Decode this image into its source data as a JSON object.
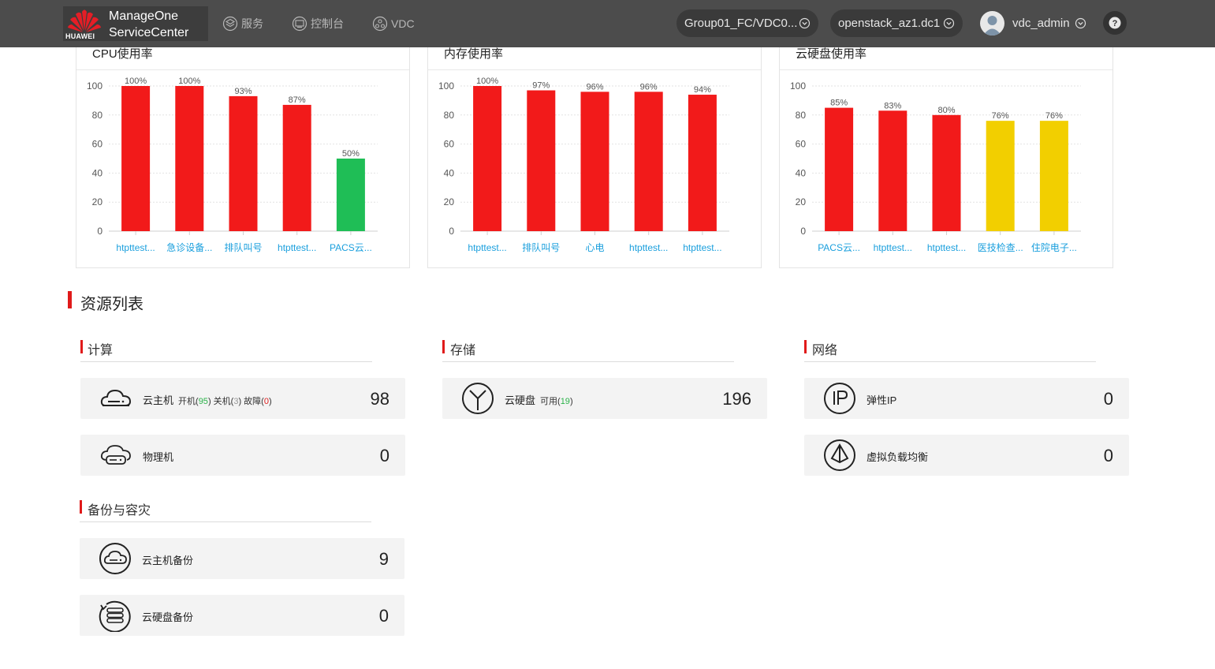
{
  "topbar": {
    "brand": "HUAWEI",
    "product_line1": "ManageOne",
    "product_line2": "ServiceCenter",
    "nav": [
      {
        "label": "服务",
        "icon": "layers-icon"
      },
      {
        "label": "控制台",
        "icon": "console-icon"
      },
      {
        "label": "VDC",
        "icon": "vdc-icon"
      }
    ],
    "vdc_selector": "Group01_FC/VDC0...",
    "region_selector": "openstack_az1.dc1",
    "user_name": "vdc_admin",
    "help_symbol": "?"
  },
  "charts": {
    "cpu": {
      "title": "CPU使用率"
    },
    "mem": {
      "title": "内存使用率"
    },
    "disk": {
      "title": "云硬盘使用率"
    }
  },
  "chart_data": [
    {
      "type": "bar",
      "title": "CPU使用率",
      "categories": [
        "htpttest...",
        "急诊设备...",
        "排队叫号",
        "htpttest...",
        "PACS云..."
      ],
      "values": [
        100,
        100,
        93,
        87,
        50
      ],
      "value_labels": [
        "100%",
        "100%",
        "93%",
        "87%",
        "50%"
      ],
      "colors": [
        "#f21a1a",
        "#f21a1a",
        "#f21a1a",
        "#f21a1a",
        "#1fbe56"
      ],
      "ylim": [
        0,
        100
      ],
      "yticks": [
        0,
        20,
        40,
        60,
        80,
        100
      ],
      "grid": true
    },
    {
      "type": "bar",
      "title": "内存使用率",
      "categories": [
        "htpttest...",
        "排队叫号",
        "心电",
        "htpttest...",
        "htpttest..."
      ],
      "values": [
        100,
        97,
        96,
        96,
        94
      ],
      "value_labels": [
        "100%",
        "97%",
        "96%",
        "96%",
        "94%"
      ],
      "colors": [
        "#f21a1a",
        "#f21a1a",
        "#f21a1a",
        "#f21a1a",
        "#f21a1a"
      ],
      "ylim": [
        0,
        100
      ],
      "yticks": [
        0,
        20,
        40,
        60,
        80,
        100
      ],
      "grid": true
    },
    {
      "type": "bar",
      "title": "云硬盘使用率",
      "categories": [
        "PACS云...",
        "htpttest...",
        "htpttest...",
        "医技检查...",
        "住院电子..."
      ],
      "values": [
        85,
        83,
        80,
        76,
        76
      ],
      "value_labels": [
        "85%",
        "83%",
        "80%",
        "76%",
        "76%"
      ],
      "colors": [
        "#f21a1a",
        "#f21a1a",
        "#f21a1a",
        "#f2cf00",
        "#f2cf00"
      ],
      "ylim": [
        0,
        100
      ],
      "yticks": [
        0,
        20,
        40,
        60,
        80,
        100
      ],
      "grid": true
    }
  ],
  "resources": {
    "title": "资源列表",
    "compute": {
      "title": "计算",
      "vm": {
        "label": "云主机",
        "on_label": "开机(",
        "on": "95",
        "off_label": ") 关机(",
        "off": "3",
        "fault_label": ") 故障(",
        "fault": "0",
        "close": ")",
        "count": "98"
      },
      "physical": {
        "label": "物理机",
        "count": "0"
      }
    },
    "storage": {
      "title": "存储",
      "disk": {
        "label": "云硬盘",
        "avail_label": "可用(",
        "avail": "19",
        "close": ")",
        "count": "196"
      }
    },
    "network": {
      "title": "网络",
      "eip": {
        "label": "弹性IP",
        "count": "0"
      },
      "lb": {
        "label": "虚拟负载均衡",
        "count": "0"
      }
    },
    "backup": {
      "title": "备份与容灾",
      "vm_backup": {
        "label": "云主机备份",
        "count": "9"
      },
      "disk_backup": {
        "label": "云硬盘备份",
        "count": "0"
      }
    }
  }
}
